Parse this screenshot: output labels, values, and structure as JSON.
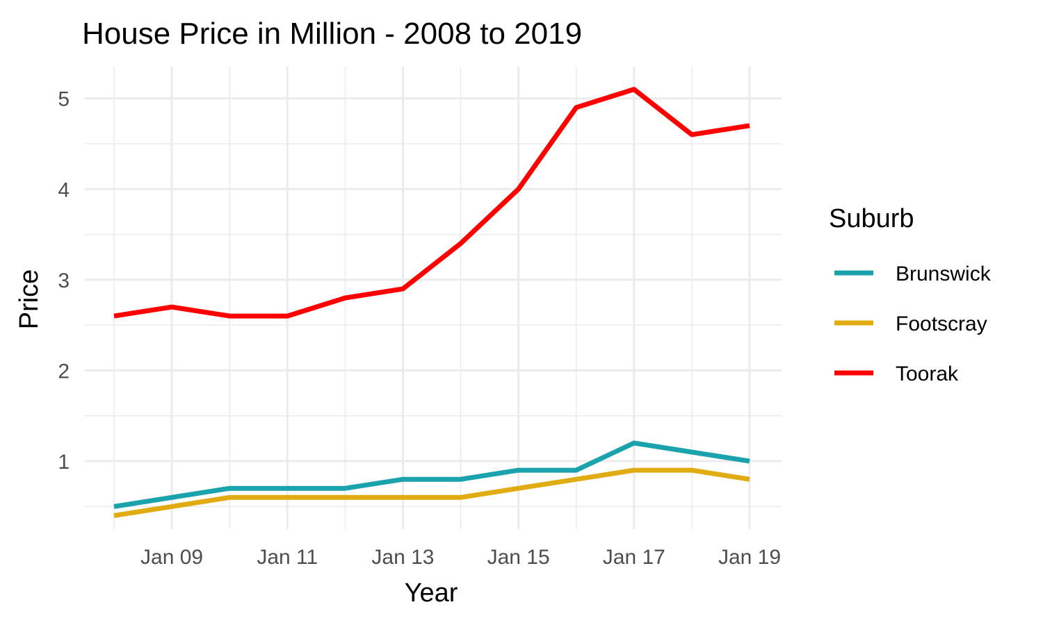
{
  "chart_data": {
    "type": "line",
    "title": "House Price in Million - 2008 to 2019",
    "xlabel": "Year",
    "ylabel": "Price",
    "x": [
      "2008-01",
      "2009-01",
      "2010-01",
      "2011-01",
      "2012-01",
      "2013-01",
      "2014-01",
      "2015-01",
      "2016-01",
      "2017-01",
      "2018-01",
      "2019-01"
    ],
    "x_ticks": [
      {
        "value": "2009-01",
        "label": "Jan 09"
      },
      {
        "value": "2011-01",
        "label": "Jan 11"
      },
      {
        "value": "2013-01",
        "label": "Jan 13"
      },
      {
        "value": "2015-01",
        "label": "Jan 15"
      },
      {
        "value": "2017-01",
        "label": "Jan 17"
      },
      {
        "value": "2019-01",
        "label": "Jan 19"
      }
    ],
    "y_ticks": [
      1,
      2,
      3,
      4,
      5
    ],
    "ylim": [
      0.25,
      5.35
    ],
    "grid": true,
    "legend": {
      "title": "Suburb",
      "position": "right"
    },
    "series": [
      {
        "name": "Brunswick",
        "color": "#1ba3ad",
        "values": [
          0.5,
          0.6,
          0.7,
          0.7,
          0.7,
          0.8,
          0.8,
          0.9,
          0.9,
          1.2,
          1.1,
          1.0
        ]
      },
      {
        "name": "Footscray",
        "color": "#e0ac12",
        "values": [
          0.4,
          0.5,
          0.6,
          0.6,
          0.6,
          0.6,
          0.6,
          0.7,
          0.8,
          0.9,
          0.9,
          0.8
        ]
      },
      {
        "name": "Toorak",
        "color": "#fe0000",
        "values": [
          2.6,
          2.7,
          2.6,
          2.6,
          2.8,
          2.9,
          3.4,
          4.0,
          4.9,
          5.1,
          4.6,
          4.7
        ]
      }
    ]
  }
}
